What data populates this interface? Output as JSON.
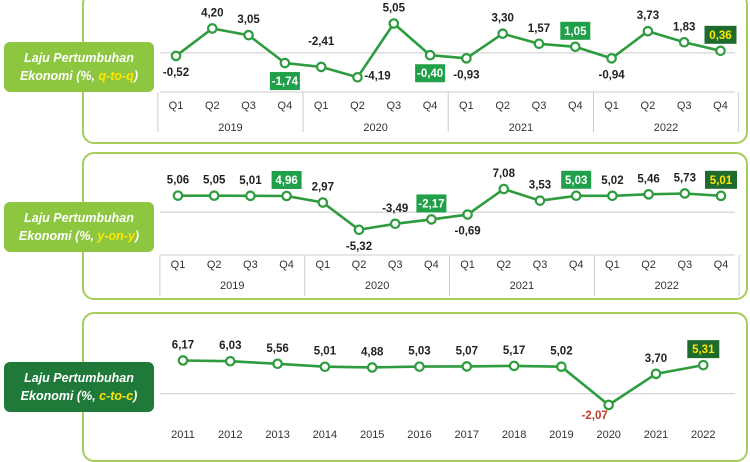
{
  "charts": [
    {
      "label": {
        "line1": "Laju Pertumbuhan",
        "line2_prefix": "Ekonomi (%, ",
        "line2_hl": "q-to-q",
        "line2_suffix": ")"
      },
      "chart_data": {
        "type": "line",
        "categories": [
          "Q1",
          "Q2",
          "Q3",
          "Q4",
          "Q1",
          "Q2",
          "Q3",
          "Q4",
          "Q1",
          "Q2",
          "Q3",
          "Q4",
          "Q1",
          "Q2",
          "Q3",
          "Q4"
        ],
        "groups": [
          "2019",
          "2020",
          "2021",
          "2022"
        ],
        "values": [
          -0.52,
          4.2,
          3.05,
          -1.74,
          -2.41,
          -4.19,
          5.05,
          -0.4,
          -0.93,
          3.3,
          1.57,
          1.05,
          -0.94,
          3.73,
          1.83,
          0.36
        ],
        "labels": [
          "-0,52",
          "4,20",
          "3,05",
          "-1,74",
          "-2,41",
          "-4,19",
          "5,05",
          "-0,40",
          "-0,93",
          "3,30",
          "1,57",
          "1,05",
          "-0,94",
          "3,73",
          "1,83",
          "0,36"
        ],
        "highlighted": [
          3,
          7,
          11,
          15
        ],
        "ylim": [
          -5,
          6
        ]
      }
    },
    {
      "label": {
        "line1": "Laju Pertumbuhan",
        "line2_prefix": "Ekonomi (%, ",
        "line2_hl": "y-on-y",
        "line2_suffix": ")"
      },
      "chart_data": {
        "type": "line",
        "categories": [
          "Q1",
          "Q2",
          "Q3",
          "Q4",
          "Q1",
          "Q2",
          "Q3",
          "Q4",
          "Q1",
          "Q2",
          "Q3",
          "Q4",
          "Q1",
          "Q2",
          "Q3",
          "Q4"
        ],
        "groups": [
          "2019",
          "2020",
          "2021",
          "2022"
        ],
        "values": [
          5.06,
          5.05,
          5.01,
          4.96,
          2.97,
          -5.32,
          -3.49,
          -2.17,
          -0.69,
          7.08,
          3.53,
          5.03,
          5.02,
          5.46,
          5.73,
          5.01
        ],
        "labels": [
          "5,06",
          "5,05",
          "5,01",
          "4,96",
          "2,97",
          "-5,32",
          "-3,49",
          "-2,17",
          "-0,69",
          "7,08",
          "3,53",
          "5,03",
          "5,02",
          "5,46",
          "5,73",
          "5,01"
        ],
        "highlighted": [
          3,
          7,
          11,
          15
        ],
        "ylim": [
          -6,
          8
        ]
      }
    },
    {
      "label": {
        "line1": "Laju Pertumbuhan",
        "line2_prefix": "Ekonomi (%, ",
        "line2_hl": "c-to-c",
        "line2_suffix": ")"
      },
      "chart_data": {
        "type": "line",
        "categories": [
          "2011",
          "2012",
          "2013",
          "2014",
          "2015",
          "2016",
          "2017",
          "2018",
          "2019",
          "2020",
          "2021",
          "2022"
        ],
        "values": [
          6.17,
          6.03,
          5.56,
          5.01,
          4.88,
          5.03,
          5.07,
          5.17,
          5.02,
          -2.07,
          3.7,
          5.31
        ],
        "labels": [
          "6,17",
          "6,03",
          "5,56",
          "5,01",
          "4,88",
          "5,03",
          "5,07",
          "5,17",
          "5,02",
          "-2,07",
          "3,70",
          "5,31"
        ],
        "highlighted": [
          11
        ],
        "negative_color": "#c0392b",
        "ylim": [
          -3,
          7
        ]
      }
    }
  ],
  "colors": {
    "line": "#2e9b3e",
    "marker_fill": "#ffffff",
    "highlight_bg": "#21a04a",
    "highlight_last_bg": "#1e6b2f",
    "highlight_last_text": "#ffe600",
    "grid": "#cccccc"
  }
}
